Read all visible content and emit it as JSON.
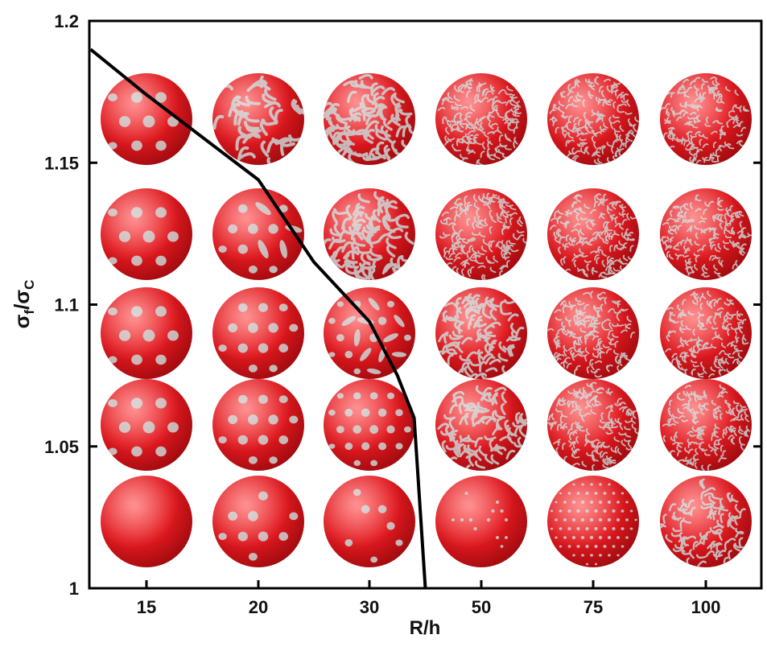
{
  "chart_data": {
    "type": "scatter",
    "xlabel": "R/h",
    "ylabel_main": "σ",
    "ylabel_sub_f": "f",
    "ylabel_slash": "/",
    "ylabel_denom": "σ",
    "ylabel_sub_c": "C",
    "categories": [
      "15",
      "20",
      "30",
      "50",
      "75",
      "100"
    ],
    "yticks": [
      {
        "value": 1.0,
        "label": "1"
      },
      {
        "value": 1.05,
        "label": "1.05"
      },
      {
        "value": 1.1,
        "label": "1.1"
      },
      {
        "value": 1.15,
        "label": "1.15"
      },
      {
        "value": 1.2,
        "label": "1.2"
      }
    ],
    "ylim": [
      1.0,
      1.2
    ],
    "grid": false,
    "rows_stress": [
      1.02,
      1.06,
      1.11,
      1.13,
      1.17
    ],
    "sphere_pattern_rows": [
      {
        "stress": 1.17,
        "patterns": [
          "holes",
          "stripes",
          "labyrinth",
          "labyrinth-fine",
          "labyrinth-fine",
          "labyrinth-fine"
        ]
      },
      {
        "stress": 1.13,
        "patterns": [
          "holes",
          "holes-stripes",
          "labyrinth",
          "labyrinth-fine",
          "labyrinth-fine",
          "labyrinth-fine"
        ]
      },
      {
        "stress": 1.11,
        "patterns": [
          "holes",
          "holes",
          "holes-stripes",
          "labyrinth",
          "labyrinth-fine",
          "labyrinth-fine"
        ]
      },
      {
        "stress": 1.06,
        "patterns": [
          "holes",
          "holes",
          "holes",
          "labyrinth",
          "labyrinth-fine",
          "labyrinth-fine"
        ]
      },
      {
        "stress": 1.02,
        "patterns": [
          "smooth",
          "holes-sparse",
          "holes-sparse",
          "smooth-dots",
          "dots",
          "labyrinth"
        ]
      }
    ],
    "boundary_line": {
      "name": "",
      "points": [
        {
          "x": 12.5,
          "y": 1.19
        },
        {
          "x": 15.0,
          "y": 1.174
        },
        {
          "x": 20.0,
          "y": 1.144
        },
        {
          "x": 25.0,
          "y": 1.115
        },
        {
          "x": 30.0,
          "y": 1.094
        },
        {
          "x": 35.0,
          "y": 1.075
        },
        {
          "x": 38.0,
          "y": 1.06
        },
        {
          "x": 40.0,
          "y": 1.0
        }
      ]
    },
    "colors": {
      "sphere": "#e0191f",
      "pattern": "#c9c9c9",
      "line": "#000000",
      "axis": "#000000"
    }
  }
}
